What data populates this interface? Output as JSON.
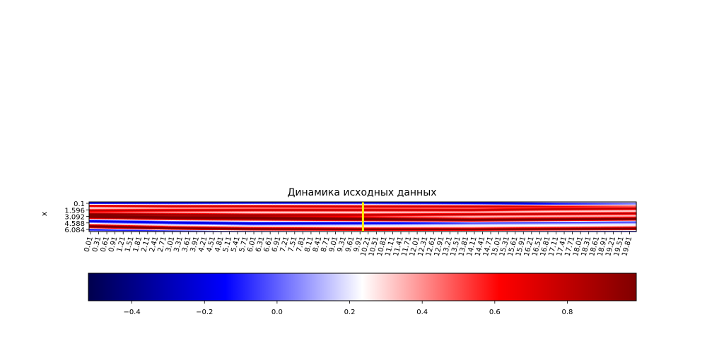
{
  "chart_data": [
    {
      "type": "heatmap",
      "title": "Динамика исходных данных",
      "ylabel": "x",
      "xlabel": "",
      "y_tick_labels": [
        "0.1",
        "1.596",
        "3.092",
        "4.588",
        "6.084"
      ],
      "x_tick_labels": [
        "0.01",
        "0.31",
        "0.61",
        "0.91",
        "1.21",
        "1.51",
        "1.81",
        "2.11",
        "2.41",
        "2.71",
        "3.01",
        "3.31",
        "3.61",
        "3.91",
        "4.21",
        "4.51",
        "4.81",
        "5.11",
        "5.41",
        "5.71",
        "6.01",
        "6.31",
        "6.61",
        "6.91",
        "7.21",
        "7.51",
        "7.81",
        "8.11",
        "8.41",
        "8.71",
        "9.01",
        "9.31",
        "9.61",
        "9.91",
        "10.21",
        "10.51",
        "10.81",
        "11.11",
        "11.41",
        "11.71",
        "12.01",
        "12.31",
        "12.61",
        "12.91",
        "13.21",
        "13.51",
        "13.81",
        "14.11",
        "14.41",
        "14.71",
        "15.01",
        "15.31",
        "15.61",
        "15.91",
        "16.21",
        "16.51",
        "16.81",
        "17.11",
        "17.41",
        "17.71",
        "18.01",
        "18.31",
        "18.61",
        "18.91",
        "19.21",
        "19.51",
        "19.81"
      ],
      "xlim": [
        0.01,
        19.99
      ],
      "ylim": [
        0.1,
        6.3
      ],
      "marker_line": {
        "x": 10.01,
        "color": "#ffee00"
      },
      "colormap": "seismic",
      "bands": [
        {
          "x": [
            0,
            3,
            6,
            10,
            14,
            17,
            20
          ],
          "y": [
            0.3,
            0.25,
            0.2,
            0.2,
            0.3,
            0.6,
            0.7
          ],
          "amp": -0.45,
          "width": 0.35
        },
        {
          "x": [
            0,
            3,
            6,
            10,
            14,
            17,
            20
          ],
          "y": [
            0.9,
            1.0,
            1.0,
            1.05,
            1.05,
            0.95,
            0.85
          ],
          "amp": 0.55,
          "width": 0.3
        },
        {
          "x": [
            0,
            3,
            6,
            10,
            14,
            17,
            20
          ],
          "y": [
            1.9,
            1.85,
            1.8,
            1.8,
            1.8,
            1.6,
            1.5
          ],
          "amp": 0.6,
          "width": 0.3
        },
        {
          "x": [
            0,
            3,
            6,
            10,
            14,
            17,
            20
          ],
          "y": [
            2.6,
            2.7,
            2.8,
            2.8,
            2.7,
            2.6,
            2.5
          ],
          "amp": 0.6,
          "width": 0.3
        },
        {
          "x": [
            0,
            3,
            6,
            10,
            14,
            17,
            20
          ],
          "y": [
            3.2,
            3.4,
            3.5,
            3.7,
            3.9,
            3.8,
            3.7
          ],
          "amp": 0.9,
          "width": 0.45
        },
        {
          "x": [
            0,
            3,
            6,
            10,
            14,
            17,
            20
          ],
          "y": [
            4.1,
            4.4,
            4.6,
            4.5,
            4.4,
            4.3,
            4.2
          ],
          "amp": -0.45,
          "width": 0.35
        },
        {
          "x": [
            0,
            3,
            6,
            10,
            14,
            17,
            20
          ],
          "y": [
            5.2,
            5.6,
            5.8,
            5.9,
            5.9,
            5.8,
            5.7
          ],
          "amp": 0.85,
          "width": 0.4
        },
        {
          "x": [
            0,
            3,
            6,
            10,
            14,
            17,
            20
          ],
          "y": [
            5.9,
            6.1,
            6.2,
            6.2,
            6.2,
            6.2,
            6.2
          ],
          "amp": -0.4,
          "width": 0.25
        }
      ]
    },
    {
      "type": "heatmap",
      "title": "",
      "colorbar": true,
      "range": [
        -0.52,
        0.99
      ],
      "tick_values": [
        -0.4,
        -0.2,
        0.0,
        0.2,
        0.4,
        0.6,
        0.8
      ],
      "tick_labels": [
        "−0.4",
        "−0.2",
        "0.0",
        "0.2",
        "0.4",
        "0.6",
        "0.8"
      ],
      "colormap": "seismic"
    }
  ]
}
